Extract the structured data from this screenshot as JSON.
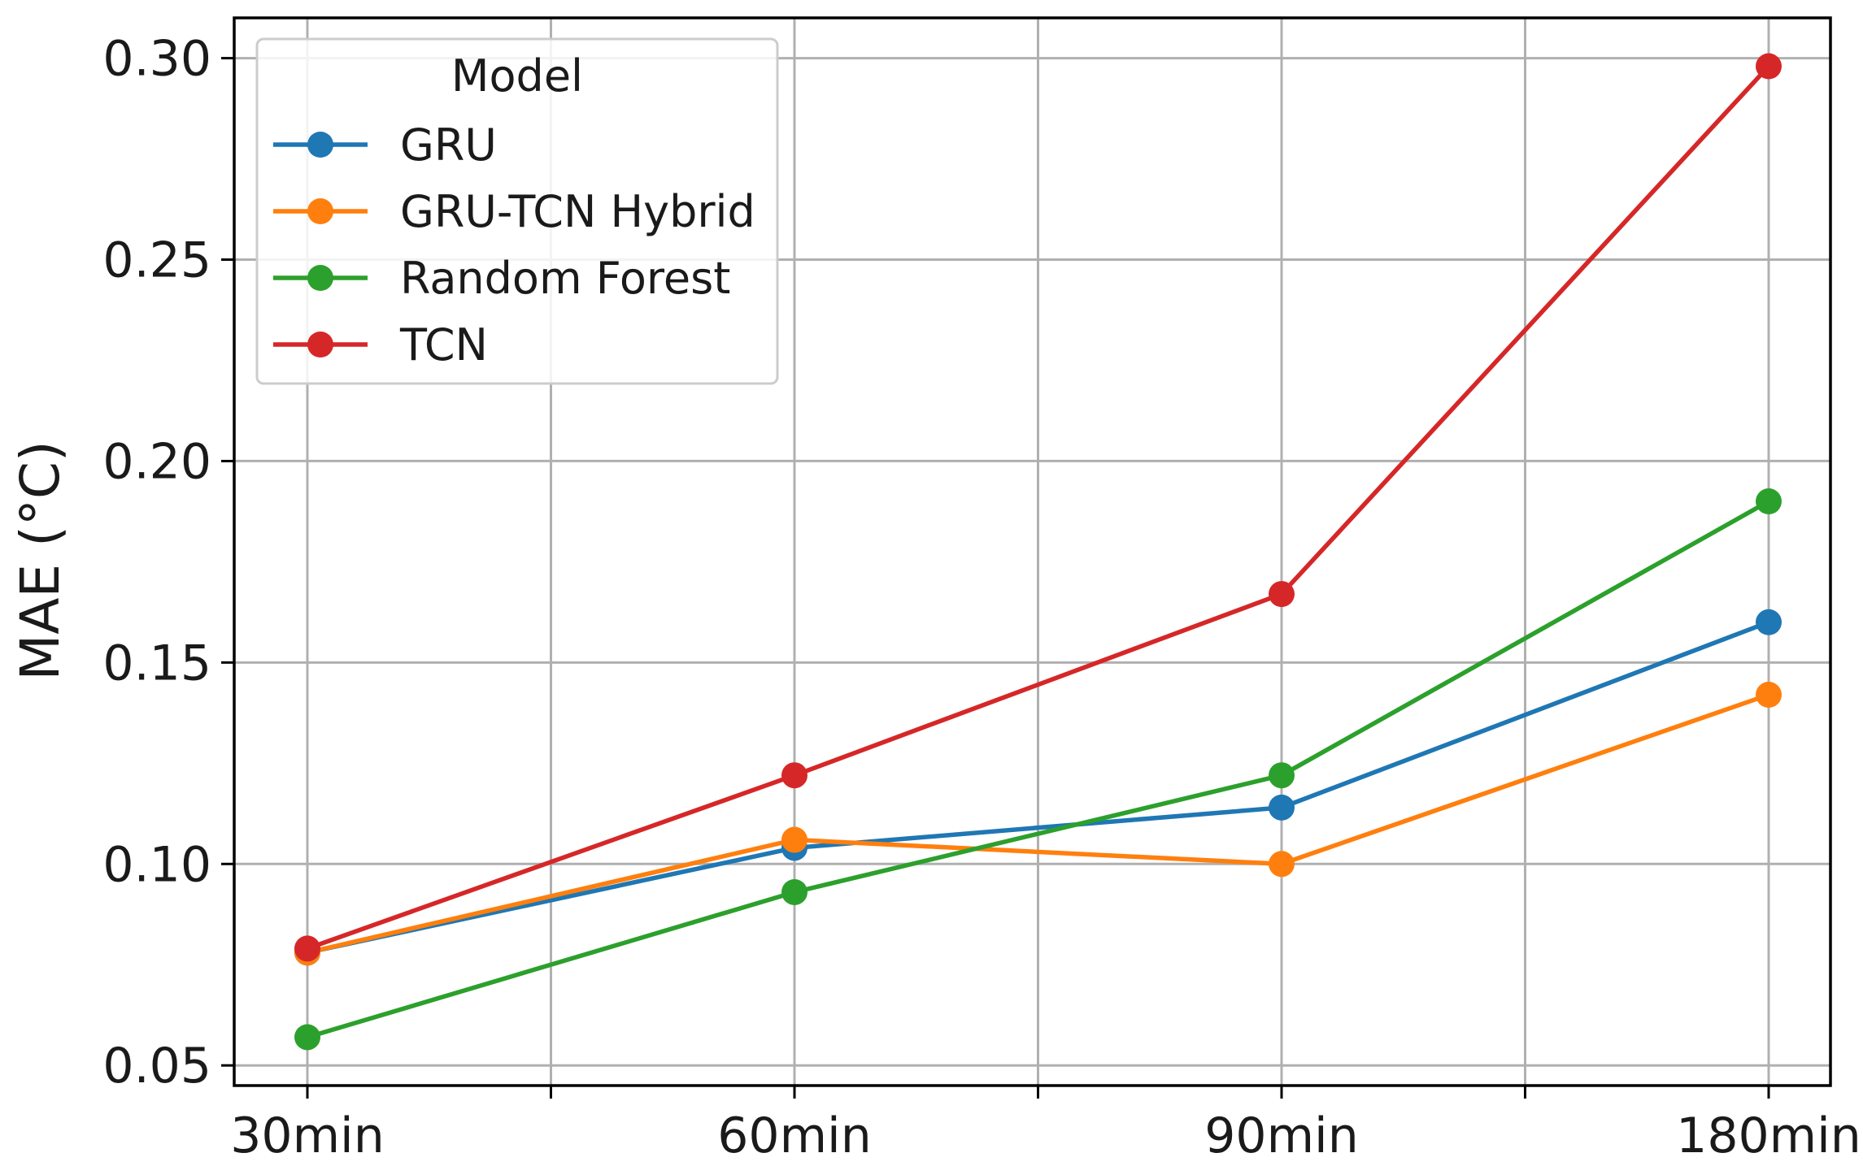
{
  "chart_data": {
    "type": "line",
    "categories": [
      "30min",
      "60min",
      "90min",
      "180min"
    ],
    "ylabel": "MAE (°C)",
    "xlabel": "",
    "title": "",
    "ylim": [
      0.045,
      0.31
    ],
    "yticks": [
      0.05,
      0.1,
      0.15,
      0.2,
      0.25,
      0.3
    ],
    "ytick_labels": [
      "0.05",
      "0.10",
      "0.15",
      "0.20",
      "0.25",
      "0.30"
    ],
    "grid": true,
    "legend": {
      "title": "Model",
      "placement": "top-left"
    },
    "series": [
      {
        "name": "GRU",
        "color": "#1f77b4",
        "values": [
          0.078,
          0.104,
          0.114,
          0.16
        ]
      },
      {
        "name": "GRU-TCN Hybrid",
        "color": "#ff7f0e",
        "values": [
          0.078,
          0.106,
          0.1,
          0.142
        ]
      },
      {
        "name": "Random Forest",
        "color": "#2ca02c",
        "values": [
          0.057,
          0.093,
          0.122,
          0.19
        ]
      },
      {
        "name": "TCN",
        "color": "#d62728",
        "values": [
          0.079,
          0.122,
          0.167,
          0.298
        ]
      }
    ]
  }
}
